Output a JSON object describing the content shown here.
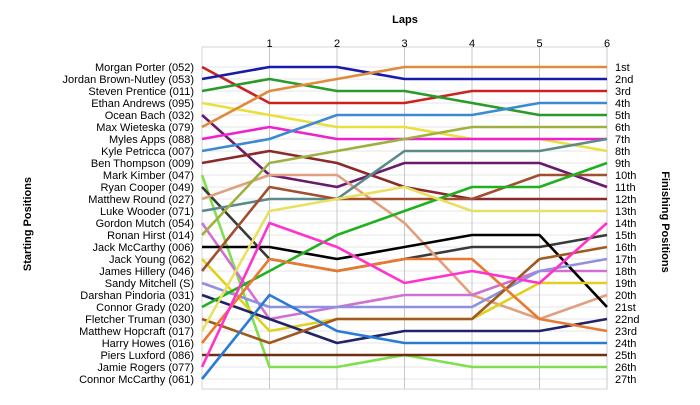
{
  "chart_data": {
    "type": "line",
    "title": "",
    "xlabel": "Laps",
    "ylabel_left": "Starting Positions",
    "ylabel_right": "Finishing Positions",
    "x": [
      0,
      1,
      2,
      3,
      4,
      5,
      6
    ],
    "x_tick_labels": [
      "1",
      "2",
      "3",
      "4",
      "5",
      "6"
    ],
    "ylim": [
      1,
      27
    ],
    "y_inverted": true,
    "grid": true,
    "starting_labels": [
      "Morgan Porter (052)",
      "Jordan Brown-Nutley (053)",
      "Steven Prentice (011)",
      "Ethan Andrews (095)",
      "Ocean Bach (032)",
      "Max Wieteska (079)",
      "Myles Apps (088)",
      "Kyle Petricca (007)",
      "Ben Thompson (009)",
      "Mark Kimber (047)",
      "Ryan Cooper (049)",
      "Matthew Round (027)",
      "Luke Wooder (071)",
      "Gordon Mutch (054)",
      "Ronan Hirst (014)",
      "Jack McCarthy (006)",
      "Jack Young (062)",
      "James Hillery (046)",
      "Sandy Mitchell (S)",
      "Darshan Pindoria (031)",
      "Connor Grady (020)",
      "Fletcher Truman (030)",
      "Matthew Hopcraft (017)",
      "Harry Howes (016)",
      "Piers Luxford (086)",
      "Jamie Rogers (077)",
      "Connor McCarthy (061)"
    ],
    "finishing_labels": [
      "1st",
      "2nd",
      "3rd",
      "4th",
      "5th",
      "6th",
      "7th",
      "8th",
      "9th",
      "10th",
      "11th",
      "12th",
      "13th",
      "14th",
      "15th",
      "16th",
      "17th",
      "18th",
      "19th",
      "20th",
      "21st",
      "22nd",
      "23rd",
      "24th",
      "25th",
      "26th",
      "27th"
    ],
    "series": [
      {
        "color": "#cc2222",
        "values": [
          1,
          4,
          4,
          4,
          3,
          3,
          3
        ]
      },
      {
        "color": "#1a1aa8",
        "values": [
          2,
          1,
          1,
          2,
          2,
          2,
          2
        ]
      },
      {
        "color": "#2a9a2a",
        "values": [
          3,
          2,
          3,
          3,
          4,
          5,
          5
        ]
      },
      {
        "color": "#e8e03c",
        "values": [
          4,
          5,
          6,
          6,
          7,
          7,
          8
        ]
      },
      {
        "color": "#6a1a6a",
        "values": [
          5,
          10,
          11,
          9,
          9,
          9,
          11
        ]
      },
      {
        "color": "#e08a3c",
        "values": [
          6,
          3,
          2,
          1,
          1,
          1,
          1
        ]
      },
      {
        "color": "#ee22cc",
        "values": [
          7,
          6,
          7,
          7,
          7,
          7,
          7
        ]
      },
      {
        "color": "#3c8ad0",
        "values": [
          8,
          7,
          5,
          5,
          5,
          4,
          4
        ]
      },
      {
        "color": "#8a2a2a",
        "values": [
          9,
          8,
          9,
          11,
          12,
          12,
          12
        ]
      },
      {
        "color": "#7ee04c",
        "values": [
          10,
          26,
          26,
          25,
          26,
          26,
          26
        ]
      },
      {
        "color": "#3a3a3a",
        "values": [
          11,
          17,
          18,
          17,
          16,
          16,
          15
        ]
      },
      {
        "color": "#e0a080",
        "values": [
          12,
          10,
          10,
          14,
          20,
          22,
          20
        ]
      },
      {
        "color": "#5a8a8a",
        "values": [
          13,
          12,
          12,
          8,
          8,
          8,
          7
        ]
      },
      {
        "color": "#d070d0",
        "values": [
          14,
          22,
          21,
          20,
          20,
          18,
          18
        ]
      },
      {
        "color": "#a0b040",
        "values": [
          15,
          9,
          8,
          7,
          6,
          6,
          6
        ]
      },
      {
        "color": "#000000",
        "values": [
          16,
          16,
          17,
          16,
          15,
          15,
          21
        ]
      },
      {
        "color": "#e0d020",
        "values": [
          17,
          23,
          22,
          22,
          22,
          19,
          19
        ]
      },
      {
        "color": "#a05030",
        "values": [
          18,
          11,
          12,
          12,
          12,
          10,
          10
        ]
      },
      {
        "color": "#9090e0",
        "values": [
          19,
          21,
          21,
          21,
          21,
          18,
          17
        ]
      },
      {
        "color": "#222266",
        "values": [
          20,
          22,
          24,
          23,
          23,
          23,
          22
        ]
      },
      {
        "color": "#20b020",
        "values": [
          21,
          18,
          15,
          13,
          11,
          11,
          9
        ]
      },
      {
        "color": "#a05a20",
        "values": [
          22,
          24,
          22,
          22,
          22,
          17,
          16
        ]
      },
      {
        "color": "#e8e060",
        "values": [
          23,
          13,
          12,
          11,
          13,
          13,
          13
        ]
      },
      {
        "color": "#e87a30",
        "values": [
          24,
          17,
          18,
          17,
          17,
          22,
          23
        ]
      },
      {
        "color": "#703010",
        "values": [
          25,
          25,
          25,
          25,
          25,
          25,
          25
        ]
      },
      {
        "color": "#ff33cc",
        "values": [
          26,
          14,
          16,
          19,
          18,
          19,
          14
        ]
      },
      {
        "color": "#2b7bd6",
        "values": [
          27,
          20,
          23,
          24,
          24,
          24,
          24
        ]
      }
    ]
  }
}
